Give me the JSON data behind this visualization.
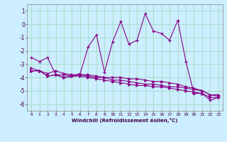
{
  "xlabel": "Windchill (Refroidissement éolien,°C)",
  "x": [
    0,
    1,
    2,
    3,
    4,
    5,
    6,
    7,
    8,
    9,
    10,
    11,
    12,
    13,
    14,
    15,
    16,
    17,
    18,
    19,
    20,
    21,
    22,
    23
  ],
  "line1": [
    -2.5,
    -2.8,
    -2.5,
    -3.8,
    -3.8,
    -3.9,
    -3.7,
    -1.7,
    -0.8,
    -3.6,
    -1.3,
    0.2,
    -1.5,
    -1.2,
    0.8,
    -0.5,
    -0.7,
    -1.2,
    0.3,
    -2.8,
    -5.2,
    -5.2,
    -5.7,
    -5.5
  ],
  "line2": [
    -3.3,
    -3.5,
    -3.7,
    -3.5,
    -3.7,
    -3.8,
    -3.8,
    -3.9,
    -4.0,
    -4.0,
    -4.0,
    -4.0,
    -4.1,
    -4.1,
    -4.2,
    -4.3,
    -4.3,
    -4.4,
    -4.5,
    -4.7,
    -4.8,
    -5.0,
    -5.3,
    -5.4
  ],
  "line3": [
    -3.5,
    -3.5,
    -3.9,
    -3.8,
    -4.0,
    -3.9,
    -3.8,
    -3.8,
    -3.9,
    -4.0,
    -4.2,
    -4.2,
    -4.3,
    -4.4,
    -4.5,
    -4.5,
    -4.6,
    -4.7,
    -4.7,
    -4.8,
    -4.9,
    -5.0,
    -5.3,
    -5.3
  ],
  "line4": [
    -3.5,
    -3.5,
    -3.9,
    -3.8,
    -4.0,
    -3.9,
    -3.9,
    -4.0,
    -4.1,
    -4.2,
    -4.3,
    -4.4,
    -4.5,
    -4.6,
    -4.6,
    -4.7,
    -4.7,
    -4.8,
    -4.9,
    -5.0,
    -5.1,
    -5.2,
    -5.5,
    -5.5
  ],
  "line_color": "#880088",
  "bg_color": "#cceeff",
  "grid_color": "#aaddcc",
  "ylim": [
    -6.5,
    1.5
  ],
  "yticks": [
    -6,
    -5,
    -4,
    -3,
    -2,
    -1,
    0,
    1
  ],
  "xticks": [
    0,
    1,
    2,
    3,
    4,
    5,
    6,
    7,
    8,
    9,
    10,
    11,
    12,
    13,
    14,
    15,
    16,
    17,
    18,
    19,
    20,
    21,
    22,
    23
  ]
}
